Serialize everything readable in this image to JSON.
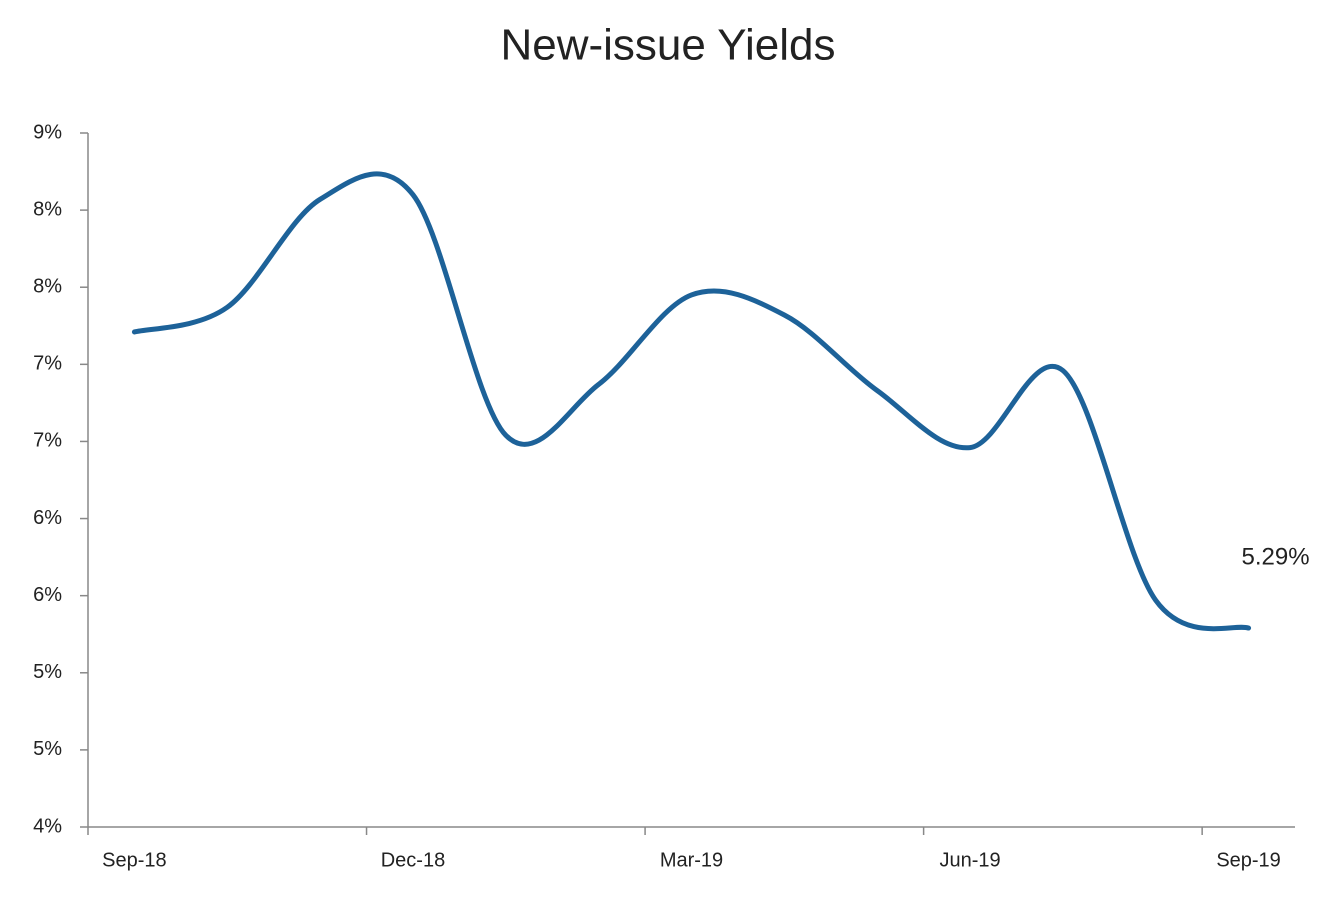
{
  "chart_data": {
    "type": "line",
    "title": "New-issue Yields",
    "categories": [
      "Sep-18",
      null,
      null,
      "Dec-18",
      null,
      null,
      "Mar-19",
      null,
      null,
      "Jun-19",
      null,
      null,
      "Sep-19"
    ],
    "series": [
      {
        "name": "New-issue Yield",
        "color": "#1d6299",
        "values": [
          7.21,
          7.37,
          8.07,
          8.1,
          6.54,
          6.87,
          7.45,
          7.32,
          6.83,
          6.46,
          6.96,
          5.47,
          5.29
        ],
        "value_labels": [
          null,
          null,
          null,
          null,
          null,
          null,
          null,
          null,
          null,
          null,
          null,
          null,
          "5.29%"
        ]
      }
    ],
    "ylim": [
      4.0,
      8.5
    ],
    "yticks": [
      {
        "value": 4.0,
        "label": "4%"
      },
      {
        "value": 4.5,
        "label": "5%"
      },
      {
        "value": 5.0,
        "label": "5%"
      },
      {
        "value": 5.5,
        "label": "6%"
      },
      {
        "value": 6.0,
        "label": "6%"
      },
      {
        "value": 6.5,
        "label": "7%"
      },
      {
        "value": 7.0,
        "label": "7%"
      },
      {
        "value": 7.5,
        "label": "8%"
      },
      {
        "value": 8.0,
        "label": "8%"
      },
      {
        "value": 8.5,
        "label": "9%"
      }
    ],
    "grid": false
  }
}
